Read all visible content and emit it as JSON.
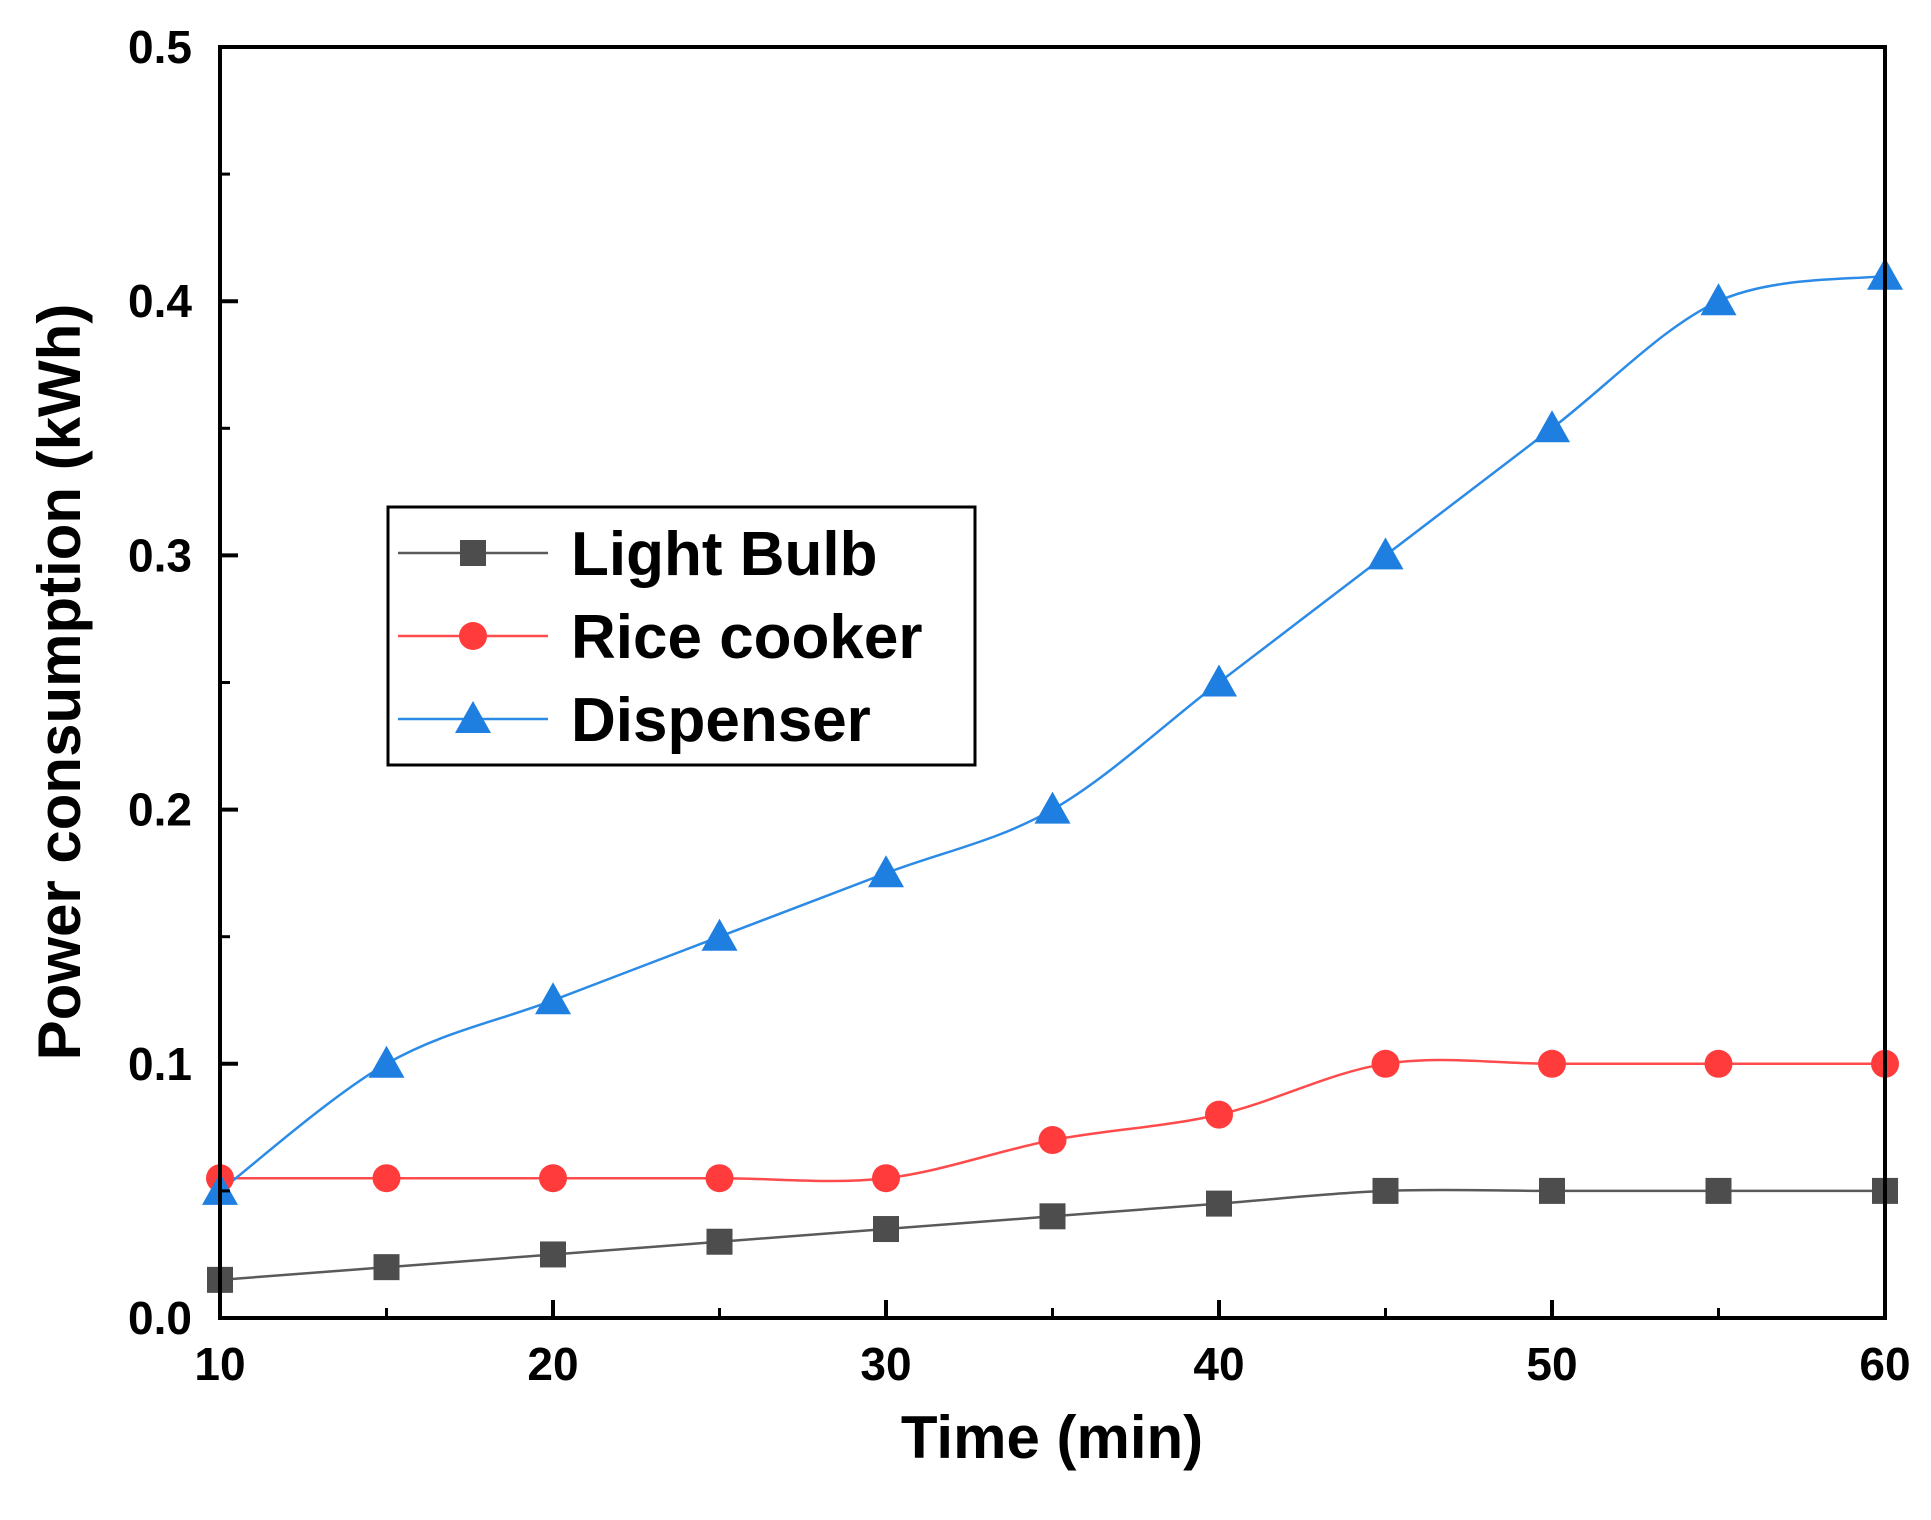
{
  "chart_data": {
    "type": "line",
    "title": "",
    "xlabel": "Time (min)",
    "ylabel": "Power consumption (kWh)",
    "xlim": [
      10,
      60
    ],
    "ylim": [
      0,
      0.5
    ],
    "x_ticks": [
      10,
      20,
      30,
      40,
      50,
      60
    ],
    "x_tick_labels": [
      "10",
      "20",
      "30",
      "40",
      "50",
      "60"
    ],
    "y_ticks": [
      0,
      0.1,
      0.2,
      0.3,
      0.4,
      0.5
    ],
    "y_tick_labels": [
      "0.0",
      "0.1",
      "0.2",
      "0.3",
      "0.4",
      "0.5"
    ],
    "grid": false,
    "legend_position": "center-left",
    "x": [
      10,
      15,
      20,
      25,
      30,
      35,
      40,
      45,
      50,
      55,
      60
    ],
    "series": [
      {
        "name": "Light Bulb",
        "color": "#4d4d4d",
        "line_color": "#5a5a5a",
        "marker": "square",
        "values": [
          0.015,
          0.02,
          0.025,
          0.03,
          0.035,
          0.04,
          0.045,
          0.05,
          0.05,
          0.05,
          0.05
        ]
      },
      {
        "name": "Rice cooker",
        "color": "#ff3b3b",
        "line_color": "#ff4b4b",
        "marker": "circle",
        "values": [
          0.055,
          0.055,
          0.055,
          0.055,
          0.055,
          0.07,
          0.08,
          0.1,
          0.1,
          0.1,
          0.1
        ]
      },
      {
        "name": "Dispenser",
        "color": "#1e7fe0",
        "line_color": "#2b8be6",
        "marker": "triangle",
        "values": [
          0.05,
          0.1,
          0.125,
          0.15,
          0.175,
          0.2,
          0.25,
          0.3,
          0.35,
          0.4,
          0.41
        ]
      }
    ]
  }
}
